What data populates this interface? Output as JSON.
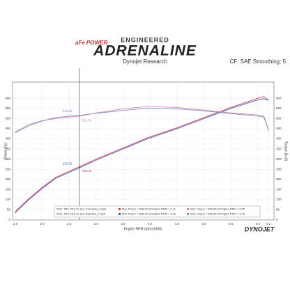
{
  "chart_data": {
    "type": "line",
    "brand": "aFe POWER",
    "kicker": "ENGINEERED",
    "title": "ADRENALINE",
    "subtitle": "Dynojet Research",
    "note": "CF: SAE Smoothing: 5",
    "x_label": "Engine RPM (rpmx1000)",
    "y_label": "Power (hp)",
    "y2_label": "Torque (lb-ft)",
    "footer": "DYNOJET",
    "xlim": [
      1.45,
      6.3
    ],
    "xticks": [
      1.5,
      {
        "value": 2.0,
        "label": "2.0"
      },
      2.5,
      {
        "value": 3.0,
        "label": "3.0"
      },
      3.5,
      {
        "value": 4.0,
        "label": "4.0"
      },
      4.5,
      {
        "value": 5.0,
        "label": "5.0"
      },
      5.5,
      {
        "value": 6.0,
        "label": "6.0"
      },
      6.2
    ],
    "ylim": [
      0,
      680
    ],
    "yticks": [
      0,
      50,
      100,
      150,
      200,
      250,
      300,
      350,
      400,
      450,
      500,
      550,
      600
    ],
    "y2lim": [
      0,
      680
    ],
    "y2ticks": [
      0,
      50,
      100,
      150,
      200,
      250,
      300,
      350,
      400,
      450,
      500,
      550,
      600
    ],
    "grid": true,
    "cursor": 2.69,
    "x": [
      1.5,
      1.75,
      2.0,
      2.25,
      2.5,
      2.69,
      3.0,
      3.5,
      3.95,
      4.5,
      5.0,
      5.5,
      6.0,
      6.11,
      6.2
    ],
    "series": [
      {
        "color": "#d2404e",
        "values": [
          40,
          105,
          160,
          210,
          240,
          262.45,
          300,
          355,
          405,
          455,
          505,
          555,
          600,
          608.93,
          590
        ],
        "cursor_value": 262.45
      },
      {
        "color": "#4a5bb5",
        "values": [
          35,
          100,
          155,
          205,
          235,
          256.92,
          295,
          350,
          400,
          450,
          500,
          550,
          592,
          598,
          590
        ],
        "cursor_value": 256.92
      },
      {
        "color": "#d9899a",
        "axis": "y2",
        "values": [
          435,
          470,
          490,
          500,
          508,
          511.35,
          528,
          548,
          559.89,
          555,
          542,
          528,
          518,
          515,
          440
        ],
        "cursor_value": 511.35
      },
      {
        "color": "#7f8cc9",
        "axis": "y2",
        "values": [
          430,
          465,
          488,
          505,
          512,
          515.84,
          526,
          540,
          552.26,
          548,
          538,
          525,
          512,
          508,
          445
        ],
        "cursor_value": 515.84
      }
    ],
    "legend": [
      {
        "file": "2021 TRX V8 6.2L (sc) Cat-Back_0.wp8",
        "power": "Max Power = 608.93 at Engine RPM = 6.11",
        "torque": "Max Torque = 559.89 at Engine RPM = 3.95"
      },
      {
        "file": "2021 TRX V8 6.2L (sc) Baseline_0.wp8",
        "power": "Max Power = 598.32 at Engine RPM = 6.32",
        "torque": "Max Torque = 552.26 at Engine RPM = 3.94"
      }
    ]
  }
}
